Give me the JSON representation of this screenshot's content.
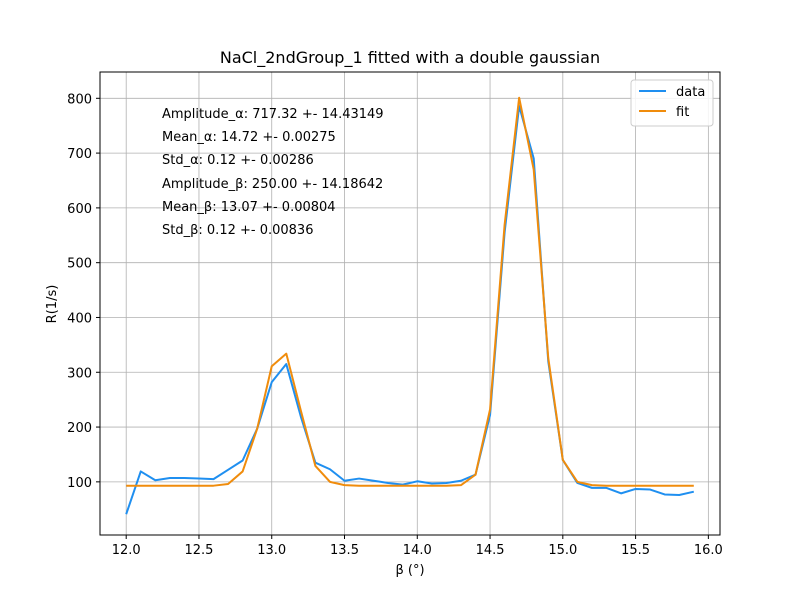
{
  "chart_data": {
    "type": "line",
    "title": "NaCl_2ndGroup_1 fitted with a double gaussian",
    "xlabel": "β (°)",
    "ylabel": "R(1/s)",
    "xlim": [
      11.82,
      16.08
    ],
    "ylim": [
      3,
      848
    ],
    "x_ticks": [
      12.0,
      12.5,
      13.0,
      13.5,
      14.0,
      14.5,
      15.0,
      15.5,
      16.0
    ],
    "x_tick_labels": [
      "12.0",
      "12.5",
      "13.0",
      "13.5",
      "14.0",
      "14.5",
      "15.0",
      "15.5",
      "16.0"
    ],
    "y_ticks": [
      100,
      200,
      300,
      400,
      500,
      600,
      700,
      800
    ],
    "y_tick_labels": [
      "100",
      "200",
      "300",
      "400",
      "500",
      "600",
      "700",
      "800"
    ],
    "grid": true,
    "legend_position": "top-right",
    "x": [
      12.0,
      12.1,
      12.2,
      12.3,
      12.4,
      12.5,
      12.6,
      12.7,
      12.8,
      12.9,
      13.0,
      13.1,
      13.2,
      13.3,
      13.4,
      13.5,
      13.6,
      13.7,
      13.8,
      13.9,
      14.0,
      14.1,
      14.2,
      14.3,
      14.4,
      14.5,
      14.6,
      14.7,
      14.8,
      14.9,
      15.0,
      15.1,
      15.2,
      15.3,
      15.4,
      15.5,
      15.6,
      15.7,
      15.8,
      15.9
    ],
    "series": [
      {
        "name": "data",
        "color": "#1f8ff0",
        "values": [
          41,
          119,
          103,
          107,
          107,
          106,
          105,
          122,
          139,
          197,
          282,
          315,
          219,
          135,
          123,
          102,
          106,
          102,
          98,
          95,
          101,
          97,
          98,
          102,
          113,
          222,
          555,
          786,
          690,
          320,
          140,
          98,
          89,
          89,
          79,
          87,
          86,
          77,
          76,
          82
        ]
      },
      {
        "name": "fit",
        "color": "#f08c0c",
        "values": [
          93,
          93,
          93,
          93,
          93,
          93,
          93,
          96,
          119,
          197,
          311,
          334,
          230,
          129,
          100,
          94,
          93,
          93,
          93,
          93,
          93,
          93,
          93,
          94,
          113,
          232,
          569,
          801,
          670,
          326,
          140,
          100,
          94,
          93,
          93,
          93,
          93,
          93,
          93,
          93
        ]
      }
    ],
    "annotations": [
      "Amplitude_α: 717.32 +- 14.43149",
      "Mean_α: 14.72 +- 0.00275",
      "Std_α: 0.12 +- 0.00286",
      "Amplitude_β: 250.00 +- 14.18642",
      "Mean_β: 13.07 +- 0.00804",
      "Std_β: 0.12 +- 0.00836"
    ]
  }
}
